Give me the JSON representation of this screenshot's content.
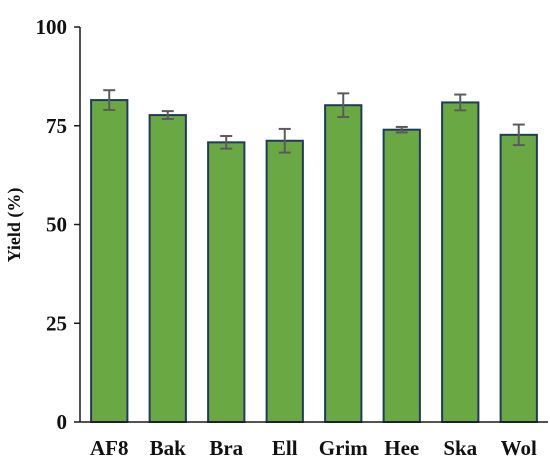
{
  "chart_data": {
    "type": "bar",
    "title": "",
    "xlabel": "",
    "ylabel": "Yield (%)",
    "categories": [
      "AF8",
      "Bak",
      "Bra",
      "Ell",
      "Grim",
      "Hee",
      "Ska",
      "Wol"
    ],
    "values": [
      81.5,
      77.7,
      70.8,
      71.2,
      80.2,
      74.0,
      80.9,
      72.7
    ],
    "errors": [
      2.5,
      1.0,
      1.6,
      3.0,
      3.0,
      0.7,
      2.0,
      2.6
    ],
    "ylim": [
      0,
      100
    ],
    "yticks": [
      "0",
      "25",
      "50",
      "75",
      "100"
    ],
    "grid": false,
    "legend": "none",
    "colors": {
      "bar_fill": "#6aa844",
      "bar_stroke": "#1f3b5c",
      "error_bar": "#5b5b5b",
      "axis": "#1a1a1a"
    }
  }
}
